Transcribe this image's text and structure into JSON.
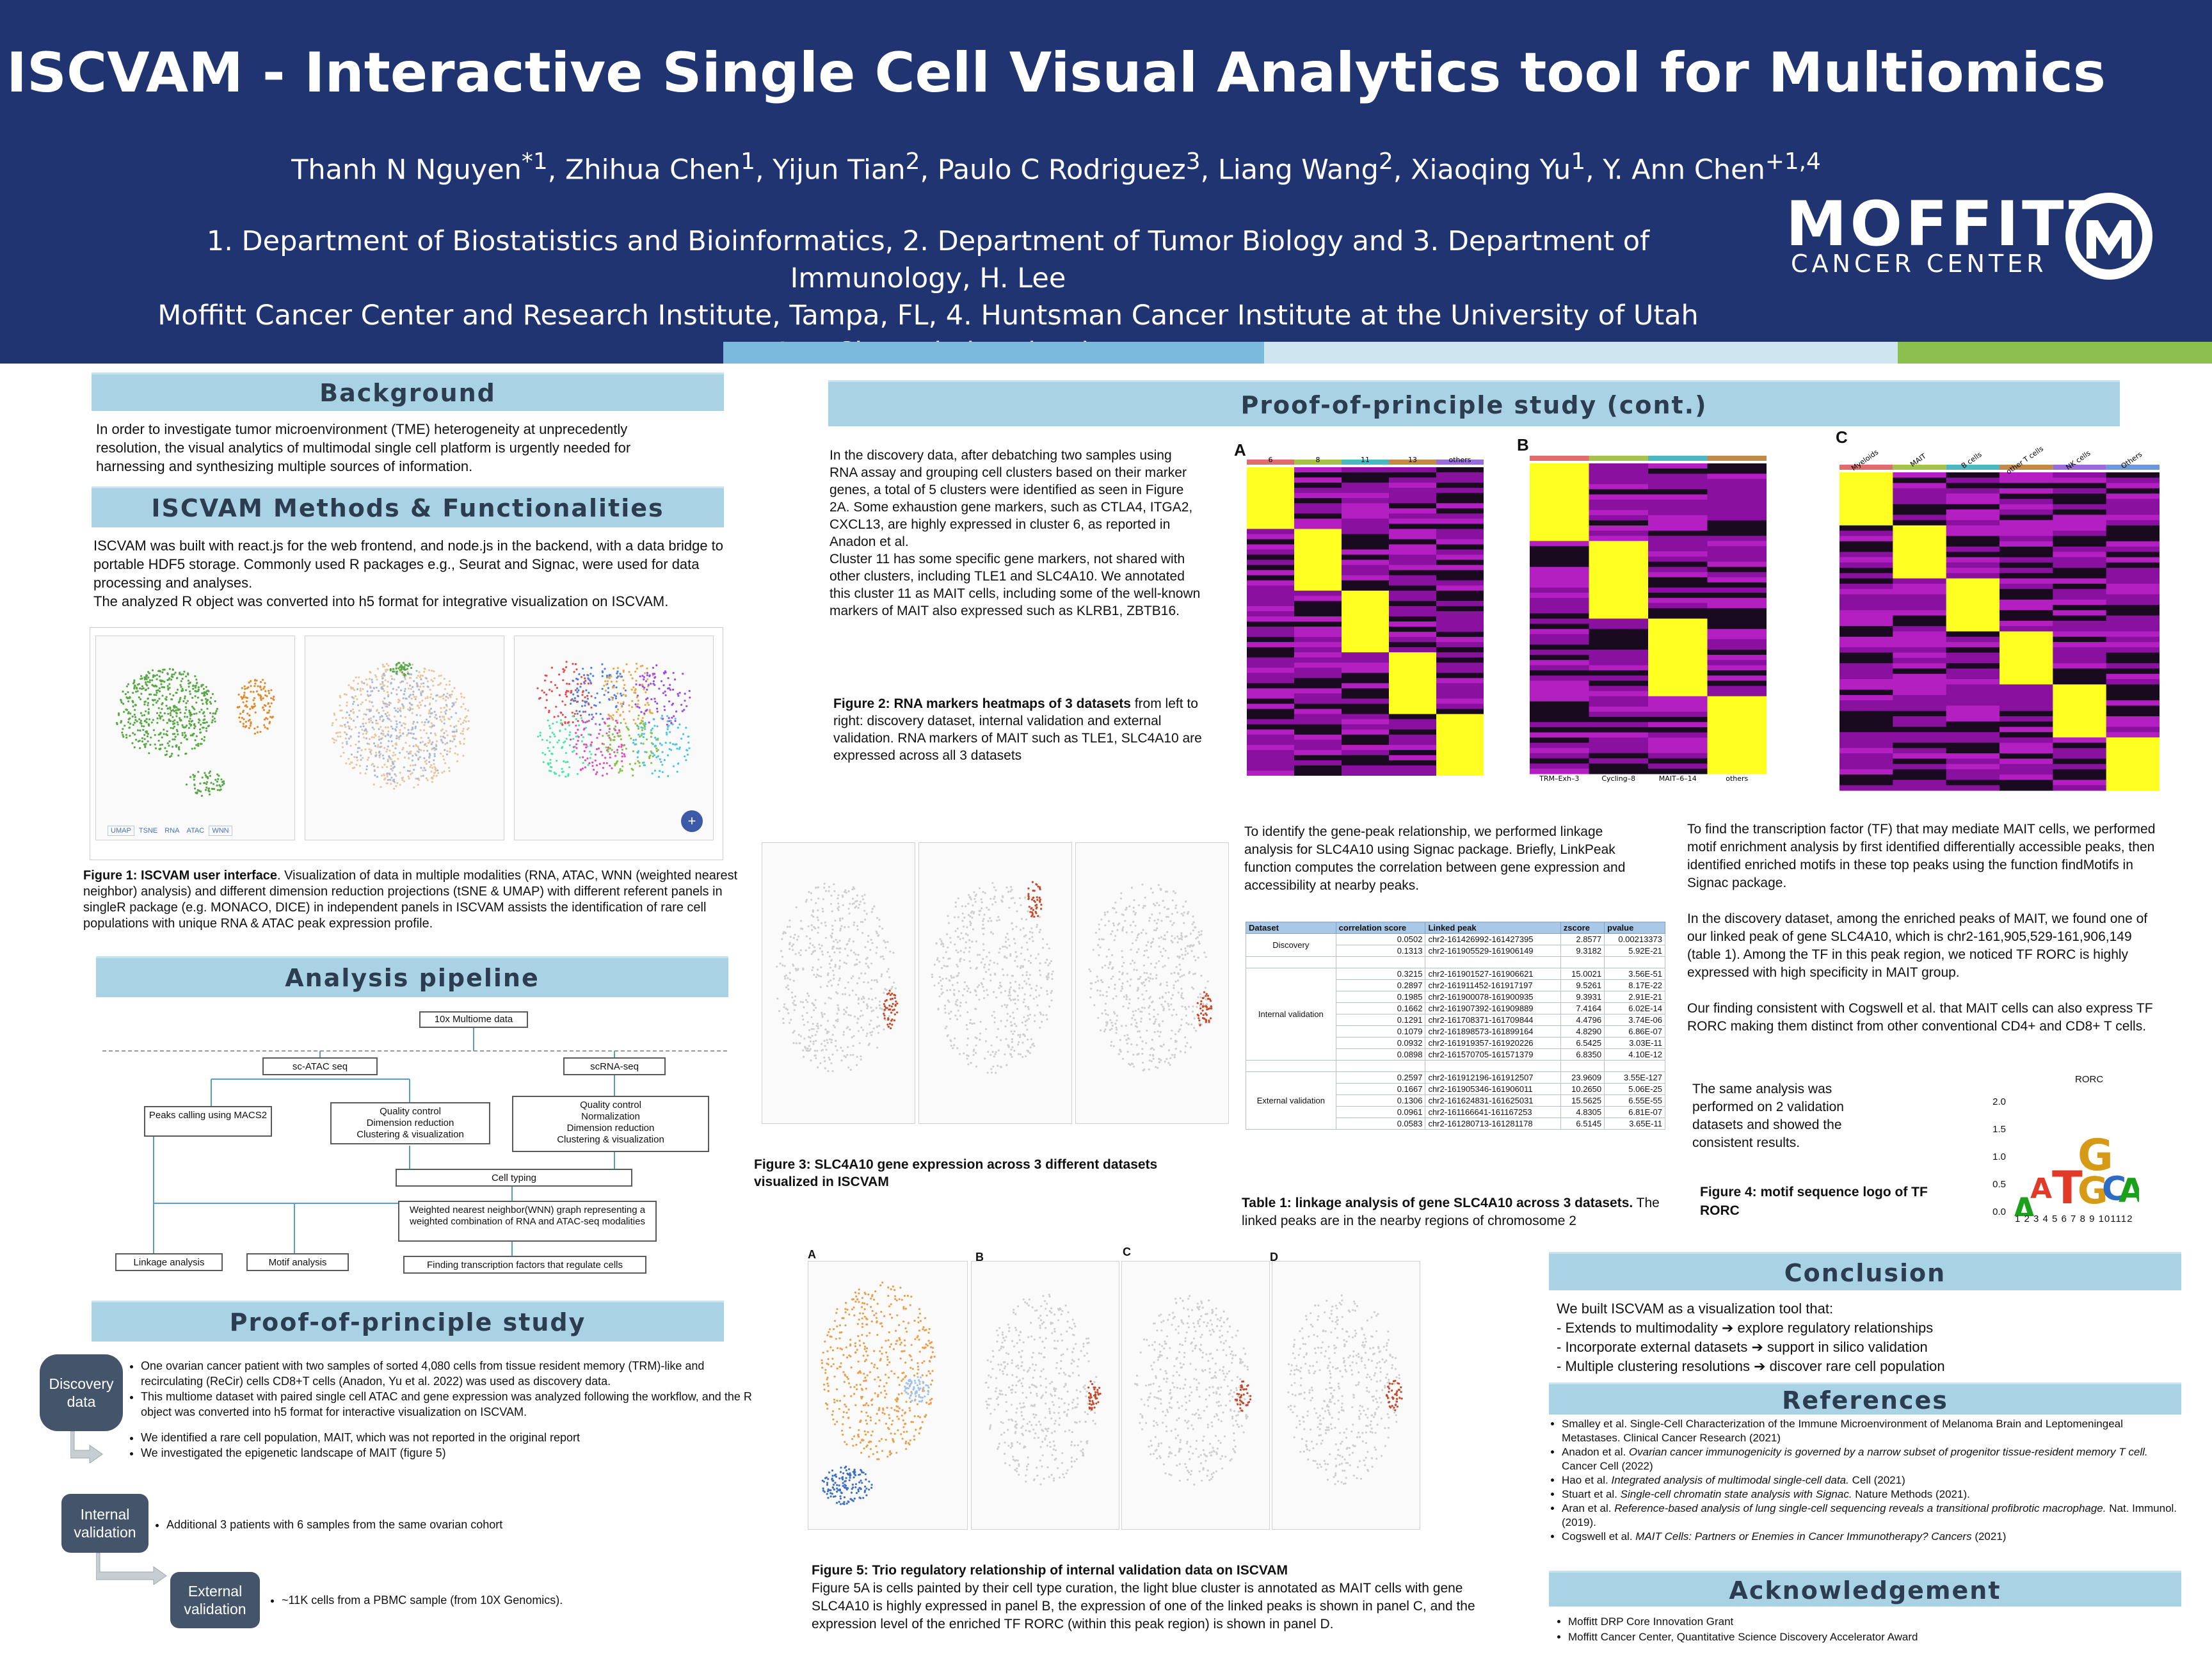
{
  "header": {
    "title": "ISCVAM - Interactive Single Cell Visual Analytics tool for Multiomics",
    "authors_html": "Thanh N Nguyen<sup>*1</sup>, Zhihua Chen<sup>1</sup>, Yijun Tian<sup>2</sup>, Paulo C Rodriguez<sup>3</sup>, Liang Wang<sup>2</sup>, Xiaoqing Yu<sup>1</sup>, Y. Ann Chen<sup>+1,4</sup>",
    "affil_line1": "1.   Department of Biostatistics and Bioinformatics, 2. Department of Tumor Biology and 3. Department of Immunology, H. Lee",
    "affil_line2": "Moffitt Cancer Center and Research Institute, Tampa, FL, 4. Huntsman Cancer Institute at the University of Utah",
    "affil_line3": "+Ann.Chen@hci.utah.edu",
    "logo_word": "MOFFITT",
    "logo_sub": "CANCER CENTER",
    "colors": {
      "navy": "#1f3470",
      "banner": "#a9d3e5",
      "pill": "#44546a"
    }
  },
  "background": {
    "heading": "Background",
    "text": "In order to investigate tumor microenvironment (TME) heterogeneity at unprecedently resolution, the visual analytics of multimodal single cell platform is urgently needed for harnessing and synthesizing multiple sources of information."
  },
  "methods": {
    "heading": "ISCVAM Methods & Functionalities",
    "text1": "ISCVAM was built with react.js for the web frontend, and node.js in the backend, with a data bridge to portable HDF5 storage. Commonly used R packages e.g., Seurat and Signac, were used for data processing and analyses.",
    "text2": "The analyzed R object was converted into h5 format for integrative visualization on ISCVAM.",
    "fig1_bold": "Figure 1: ISCVAM user interface",
    "fig1_text": ". Visualization of data in multiple modalities (RNA, ATAC, WNN (weighted nearest neighbor) analysis) and different dimension reduction projections (tSNE & UMAP) with different referent panels in singleR package (e.g. MONACO, DICE) in independent panels in ISCVAM assists the identification of rare cell populations with unique RNA & ATAC peak expression profile.",
    "ui_tabs": [
      "UMAP",
      "TSNE",
      "RNA",
      "ATAC",
      "WNN"
    ]
  },
  "pipeline": {
    "heading": "Analysis pipeline",
    "top": "10x Multiome data",
    "atac": "sc-ATAC seq",
    "rna": "scRNA-seq",
    "peaks": "Peaks calling using MACS2",
    "qc1": "Quality control\nDimension reduction\nClustering & visualization",
    "qc2": "Quality control\nNormalization\nDimension reduction\nClustering & visualization",
    "celltyping": "Cell typing",
    "wnn": "Weighted nearest neighbor(WNN) graph representing a weighted combination of RNA and ATAC-seq modalities",
    "linkage": "Linkage analysis",
    "motif": "Motif analysis",
    "tf": "Finding transcription factors that regulate cells"
  },
  "pop": {
    "heading": "Proof-of-principle study",
    "discovery_label": "Discovery\ndata",
    "discovery_b1": "One ovarian cancer patient with two samples of sorted 4,080 cells from tissue resident memory (TRM)-like and recirculating (ReCir) cells CD8+T cells (Anadon, Yu et al. 2022) was used as discovery data.",
    "discovery_b2": "This multiome dataset with paired single cell ATAC and gene expression was analyzed following the workflow, and the R object was converted into h5 format for interactive visualization on ISCVAM.",
    "discovery_b3": "We identified a rare cell population, MAIT, which was not reported in the original report",
    "discovery_b4": "We investigated the epigenetic landscape of MAIT (figure 5)",
    "internal_label": "Internal\nvalidation",
    "internal_b1": "Additional 3 patients with 6 samples from the same ovarian cohort",
    "external_label": "External\nvalidation",
    "external_b1": "~11K cells from a PBMC sample (from 10X Genomics)."
  },
  "popcont": {
    "heading": "Proof-of-principle study (cont.)",
    "text": "In the discovery data, after debatching two samples using RNA assay and grouping cell clusters based on their marker genes, a total of 5 clusters were identified as seen in Figure 2A. Some exhaustion gene markers, such as CTLA4, ITGA2, CXCL13, are highly expressed in cluster 6, as reported in Anadon et al.",
    "text2": "Cluster 11 has some specific gene markers, not shared with other clusters, including TLE1 and SLC4A10. We annotated this cluster 11 as MAIT cells, including some of the well-known markers of MAIT also expressed such as KLRB1, ZBTB16.",
    "fig2_bold": "Figure 2: RNA markers heatmaps of 3 datasets",
    "fig2_text": " from left to right: discovery dataset, internal validation and external validation. RNA markers of MAIT such as TLE1, SLC4A10 are expressed across all 3 datasets",
    "hm_labels": [
      "A",
      "B",
      "C"
    ],
    "hmB_xlabels": [
      "TRM–Exh–3",
      "Cycling–8",
      "MAIT–6–14",
      "others"
    ],
    "hmC_xlabels": [
      "Myeloids",
      "MAIT",
      "B cells",
      "other T cells",
      "NK cells",
      "Others"
    ],
    "hmA_xlabels": [
      "6",
      "8",
      "11",
      "13",
      "others"
    ],
    "fig3_bold": "Figure 3: SLC4A10 gene expression across 3 different datasets visualized in ISCVAM",
    "linkage_text": "To identify the gene-peak relationship, we performed linkage analysis for SLC4A10 using Signac package. Briefly, LinkPeak function computes the correlation between gene expression and accessibility at nearby peaks.",
    "table_headers": [
      "Dataset",
      "correlation score",
      "Linked peak",
      "zscore",
      "pvalue"
    ],
    "table_groups": [
      {
        "name": "Discovery",
        "rows": [
          [
            "0.0502",
            "chr2-161426992-161427395",
            "2.8577",
            "0.00213373"
          ],
          [
            "0.1313",
            "chr2-161905529-161906149",
            "9.3182",
            "5.92E-21"
          ]
        ]
      },
      {
        "name": "Internal validation",
        "rows": [
          [
            "0.3215",
            "chr2-161901527-161906621",
            "15.0021",
            "3.56E-51"
          ],
          [
            "0.2897",
            "chr2-161911452-161917197",
            "9.5261",
            "8.17E-22"
          ],
          [
            "0.1985",
            "chr2-161900078-161900935",
            "9.3931",
            "2.91E-21"
          ],
          [
            "0.1662",
            "chr2-161907392-161909889",
            "7.4164",
            "6.02E-14"
          ],
          [
            "0.1291",
            "chr2-161708371-161709844",
            "4.4796",
            "3.74E-06"
          ],
          [
            "0.1079",
            "chr2-161898573-161899164",
            "4.8290",
            "6.86E-07"
          ],
          [
            "0.0932",
            "chr2-161919357-161920226",
            "6.5425",
            "3.03E-11"
          ],
          [
            "0.0898",
            "chr2-161570705-161571379",
            "6.8350",
            "4.10E-12"
          ]
        ]
      },
      {
        "name": "External validation",
        "rows": [
          [
            "0.2597",
            "chr2-161912196-161912507",
            "23.9609",
            "3.55E-127"
          ],
          [
            "0.1667",
            "chr2-161905346-161906011",
            "10.2650",
            "5.06E-25"
          ],
          [
            "0.1306",
            "chr2-161624831-161625031",
            "15.5625",
            "6.55E-55"
          ],
          [
            "0.0961",
            "chr2-161166641-161167253",
            "4.8305",
            "6.81E-07"
          ],
          [
            "0.0583",
            "chr2-161280713-161281178",
            "6.5145",
            "3.65E-11"
          ]
        ]
      }
    ],
    "table_cap_bold": "Table 1: linkage analysis of gene SLC4A10 across 3 datasets.",
    "table_cap_text": " The linked peaks are in the nearby regions of chromosome 2",
    "tf_text1": "To find the transcription factor (TF) that may mediate MAIT cells, we performed motif enrichment analysis by first identified differentially accessible peaks, then identified enriched motifs in these top peaks using the function findMotifs in Signac package.",
    "tf_text2": "In the discovery dataset, among the enriched peaks of MAIT, we found one of our linked peak of gene SLC4A10, which is chr2-161,905,529-161,906,149 (table 1). Among the TF in this peak region, we noticed TF RORC is highly expressed with high specificity in MAIT group.",
    "tf_text3": "Our finding consistent with Cogswell et al. that MAIT cells can also express TF RORC making them distinct from other conventional CD4+ and CD8+ T cells.",
    "tf_text4": "The same analysis was performed on 2 validation datasets and showed the consistent results.",
    "fig4_bold": "Figure 4: motif sequence logo of TF RORC",
    "logo_title": "RORC",
    "logo_yticks": [
      "2.0",
      "1.5",
      "1.0",
      "0.5",
      "0.0"
    ],
    "logo_xticks": "1 2 3 4 5 6 7 8 9 101112",
    "fig5_labels": [
      "A",
      "B",
      "C",
      "D"
    ],
    "fig5_bold": "Figure 5: Trio regulatory relationship of internal validation data on ISCVAM",
    "fig5_text": "Figure 5A is cells painted by their cell type curation, the light blue cluster is annotated as MAIT cells with gene SLC4A10 is highly expressed in panel B, the expression of one of the linked peaks is shown in panel C, and the expression level of the enriched TF RORC (within this peak region) is shown in panel D."
  },
  "conclusion": {
    "heading": "Conclusion",
    "intro": "We built ISCVAM as a visualization tool that:",
    "items": [
      "- Extends to multimodality ➔ explore regulatory relationships",
      "- Incorporate external datasets ➔ support in silico validation",
      "- Multiple clustering resolutions ➔ discover rare cell population"
    ]
  },
  "references": {
    "heading": "References",
    "items_html": [
      "Smalley et al. Single-Cell Characterization of the Immune Microenvironment of Melanoma Brain and Leptomeningeal Metastases. Clinical Cancer Research (2021)",
      "Anadon et al. <i>Ovarian cancer immunogenicity is governed by a narrow subset of progenitor tissue-resident memory T cell.</i> Cancer Cell (2022)",
      "Hao et al. <i>Integrated analysis of multimodal single-cell data.</i> Cell (2021)",
      "Stuart et al. <i>Single-cell chromatin state analysis with Signac.</i> Nature Methods (2021).",
      "Aran et al. <i>Reference-based analysis of lung single-cell sequencing reveals a transitional profibrotic macrophage.</i> Nat. Immunol. (2019).",
      "Cogswell et al. <i>MAIT Cells: Partners or Enemies in Cancer Immunotherapy? Cancers</i> (2021)"
    ]
  },
  "acknowledgement": {
    "heading": "Acknowledgement",
    "items": [
      "Moffitt DRP Core Innovation Grant",
      "Moffitt Cancer Center, Quantitative Science Discovery Accelerator Award"
    ]
  }
}
